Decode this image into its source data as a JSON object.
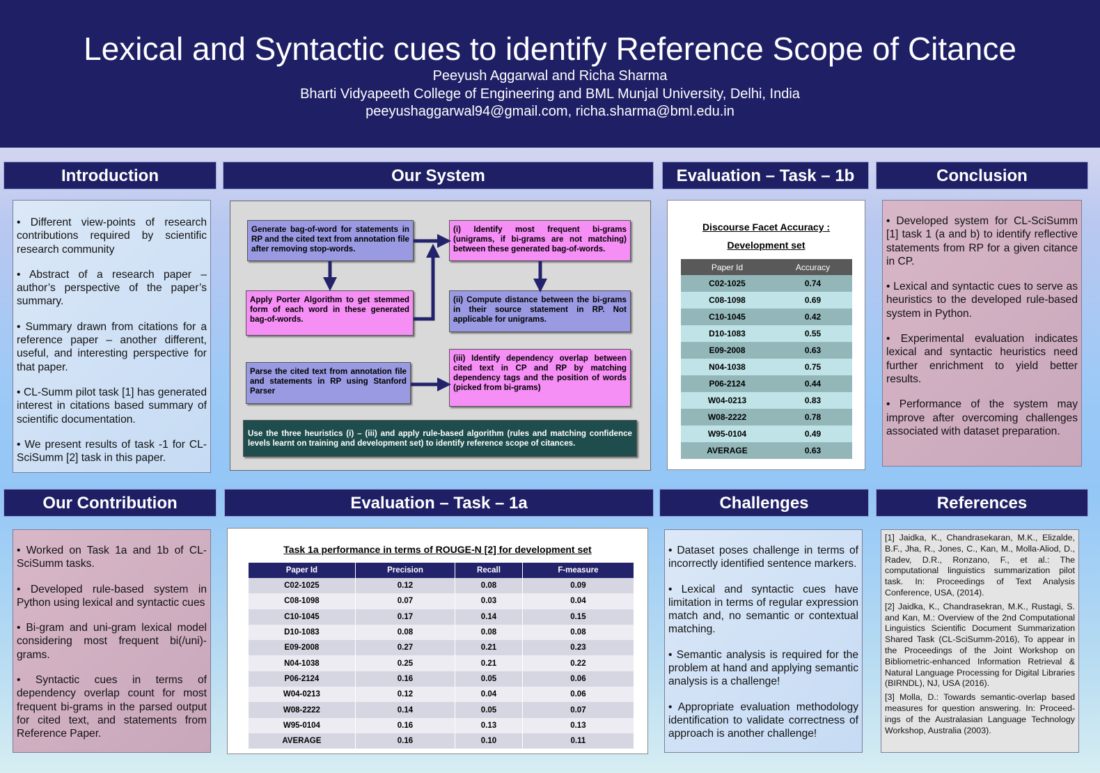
{
  "header": {
    "title": "Lexical and Syntactic cues to identify Reference Scope of Citance",
    "authors": "Peeyush Aggarwal  and Richa Sharma",
    "affiliation": "Bharti Vidyapeeth College of Engineering and  BML Munjal University, Delhi, India",
    "emails": "peeyushaggarwal94@gmail.com, richa.sharma@bml.edu.in"
  },
  "introduction": {
    "heading": "Introduction",
    "bullets": [
      "• Different view-points of research contributions required by scientific research community",
      "• Abstract of a research paper – author’s perspective of the paper’s summary.",
      "• Summary drawn from citations for a reference paper – another different, useful, and interesting perspective for that paper.",
      "• CL-Summ pilot task [1] has generated interest in citations based summary of scientific documentation.",
      "• We present results of task -1 for CL-SciSumm [2] task in this paper."
    ]
  },
  "system": {
    "heading": "Our System",
    "steps": [
      "Generate bag-of-word for statements in RP and the cited text from annotation file after removing stop-words.",
      "(i) Identify most frequent bi-grams (unigrams, if bi-grams are not matching) between these generated bag-of-words.",
      "Apply Porter Algorithm to get stemmed form of each word in these generated bag-of-words.",
      "(ii) Compute distance between the bi-grams in their source statement in RP. Not applicable for unigrams.",
      "Parse the cited text from annotation file and statements in RP using Stanford Parser",
      "(iii) Identify dependency overlap between cited text in CP and RP by matching dependency tags and the position of words (picked from bi-grams)",
      "Use the three heuristics (i) – (iii) and apply rule-based algorithm (rules and matching confidence levels learnt on training and development set) to identify reference scope of citances."
    ]
  },
  "evaluation_1b": {
    "heading": "Evaluation – Task – 1b",
    "table_title": [
      "Discourse Facet Accuracy :",
      "Development set"
    ],
    "columns": [
      "Paper Id",
      "Accuracy"
    ],
    "rows": [
      [
        "C02-1025",
        "0.74"
      ],
      [
        "C08-1098",
        "0.69"
      ],
      [
        "C10-1045",
        "0.42"
      ],
      [
        "D10-1083",
        "0.55"
      ],
      [
        "E09-2008",
        "0.63"
      ],
      [
        "N04-1038",
        "0.75"
      ],
      [
        "P06-2124",
        "0.44"
      ],
      [
        "W04-0213",
        "0.83"
      ],
      [
        "W08-2222",
        "0.78"
      ],
      [
        "W95-0104",
        "0.49"
      ],
      [
        "AVERAGE",
        "0.63"
      ]
    ]
  },
  "conclusion": {
    "heading": "Conclusion",
    "bullets": [
      "• Developed system for CL-SciSumm [1] task 1 (a and b) to identify reflective statements from RP for a given citance in CP.",
      "• Lexical and syntactic cues to serve as heuristics to the developed rule-based system in Python.",
      "• Experimental evaluation indicates lexical and syntactic heuristics need further enrichment to yield better results.",
      "• Performance of the system may improve after overcoming challenges associated with dataset preparation."
    ]
  },
  "contribution": {
    "heading": "Our Contribution",
    "bullets": [
      "• Worked on Task 1a and 1b of CL-SciSumm tasks.",
      "• Developed rule-based system in Python using lexical and syntactic cues",
      "• Bi-gram and uni-gram lexical model considering most frequent bi(/uni)-grams.",
      "• Syntactic cues in terms of dependency overlap count for most frequent bi-grams in the parsed output for cited text, and statements from Reference Paper."
    ]
  },
  "evaluation_1a": {
    "heading": "Evaluation – Task – 1a",
    "table_title": "Task 1a performance in terms of ROUGE-N [2] for development set",
    "columns": [
      "Paper Id",
      "Precision",
      "Recall",
      "F-measure"
    ],
    "rows": [
      [
        "C02-1025",
        "0.12",
        "0.08",
        "0.09"
      ],
      [
        "C08-1098",
        "0.07",
        "0.03",
        "0.04"
      ],
      [
        "C10-1045",
        "0.17",
        "0.14",
        "0.15"
      ],
      [
        "D10-1083",
        "0.08",
        "0.08",
        "0.08"
      ],
      [
        "E09-2008",
        "0.27",
        "0.21",
        "0.23"
      ],
      [
        "N04-1038",
        "0.25",
        "0.21",
        "0.22"
      ],
      [
        "P06-2124",
        "0.16",
        "0.05",
        "0.06"
      ],
      [
        "W04-0213",
        "0.12",
        "0.04",
        "0.06"
      ],
      [
        "W08-2222",
        "0.14",
        "0.05",
        "0.07"
      ],
      [
        "W95-0104",
        "0.16",
        "0.13",
        "0.13"
      ],
      [
        "AVERAGE",
        "0.16",
        "0.10",
        "0.11"
      ]
    ]
  },
  "challenges": {
    "heading": "Challenges",
    "bullets": [
      "• Dataset poses challenge in terms of incorrectly identified sentence markers.",
      "• Lexical and syntactic cues have limitation in terms of regular expression match and, no semantic or contextual matching.",
      "• Semantic analysis is required for the problem at hand and applying semantic analysis is a challenge!",
      "• Appropriate evaluation methodology identification to validate correctness of approach is another challenge!"
    ]
  },
  "references": {
    "heading": "References",
    "items": [
      "[1] Jaidka, K., Chandrasekaran, M.K., Elizalde, B.F., Jha, R., Jones, C., Kan, M., Molla-Aliod, D., Radev, D.R., Ronzano, F., et al.: The computational linguistics summarization pilot task. In: Proceedings of Text Analysis Conference, USA, (2014).",
      "[2] Jaidka, K., Chandrasekran, M.K., Rustagi, S. and Kan, M.: Overview of the 2nd Computational Linguistics Scientific Document Summarization Shared Task (CL-SciSumm-2016), To appear in the Proceedings of the Joint Workshop on Bibliometric-enhanced Information Retrieval & Natural Language Processing for Digital Libraries (BIRNDL), NJ, USA (2016).",
      "[3] Molla, D.: Towards semantic-overlap based measures for question answering. In: Proceed-ings of the Australasian Language Technology Workshop, Australia (2003)."
    ]
  }
}
